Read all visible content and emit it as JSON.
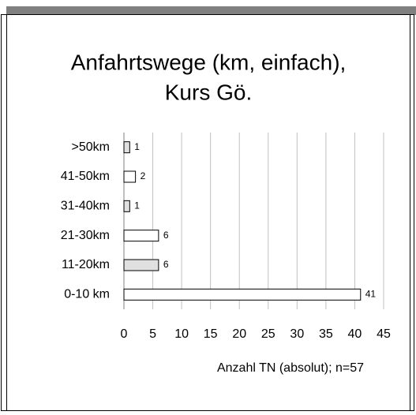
{
  "chart_data": {
    "type": "barh",
    "title": [
      "Anfahrtswege (km, einfach),",
      "Kurs Gö."
    ],
    "xlabel": "Anzahl TN (absolut); n=57",
    "categories": [
      ">50km",
      "41-50km",
      "31-40km",
      "21-30km",
      "11-20km",
      "0-10 km"
    ],
    "values": [
      1,
      2,
      1,
      6,
      6,
      41
    ],
    "colors": [
      "#e0e0e0",
      "#ffffff",
      "#e0e0e0",
      "#ffffff",
      "#e0e0e0",
      "#ffffff"
    ],
    "xlim": [
      0,
      45
    ],
    "xticks": [
      0,
      5,
      10,
      15,
      20,
      25,
      30,
      35,
      40,
      45
    ],
    "grid": true
  }
}
